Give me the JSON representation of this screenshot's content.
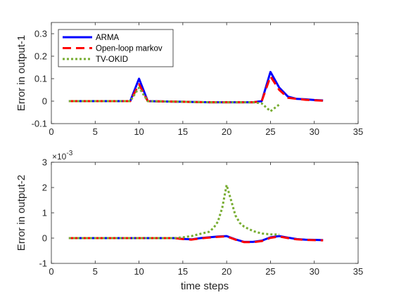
{
  "chart_data": [
    {
      "type": "line",
      "ylabel": "Error in output-1",
      "xlabel": "",
      "xlim": [
        0,
        35
      ],
      "ylim": [
        -0.1,
        0.35
      ],
      "xticks": [
        0,
        5,
        10,
        15,
        20,
        25,
        30,
        35
      ],
      "yticks": [
        -0.1,
        0,
        0.1,
        0.2,
        0.3
      ],
      "ytick_labels": [
        "-0.1",
        "0",
        "0.1",
        "0.2",
        "0.3"
      ],
      "exponent_label": "",
      "legend": {
        "position": "top-left",
        "entries": [
          "ARMA",
          "Open-loop markov",
          "TV-OKID"
        ]
      },
      "series": [
        {
          "name": "ARMA",
          "color": "#0000ff",
          "style": "solid",
          "x": [
            2,
            9,
            10,
            11,
            18,
            23,
            24,
            25,
            26,
            27,
            28,
            29,
            30,
            31
          ],
          "y": [
            0,
            0,
            0.1,
            0,
            -0.005,
            -0.005,
            0,
            0.13,
            0.06,
            0.02,
            0.01,
            0.008,
            0.005,
            0.003
          ]
        },
        {
          "name": "Open-loop markov",
          "color": "#ff0000",
          "style": "dashed",
          "x": [
            2,
            9,
            10,
            11,
            18,
            23,
            24,
            25,
            26,
            27,
            28,
            29,
            30,
            31
          ],
          "y": [
            0,
            0,
            0.075,
            0,
            -0.005,
            -0.005,
            0,
            0.11,
            0.05,
            0.015,
            0.01,
            0.006,
            0.004,
            0.002
          ]
        },
        {
          "name": "TV-OKID",
          "color": "#77ac30",
          "style": "dotted",
          "x": [
            2,
            9,
            10,
            11,
            18,
            23,
            24,
            25,
            26
          ],
          "y": [
            0,
            0,
            0.06,
            0,
            -0.005,
            -0.005,
            -0.01,
            -0.045,
            -0.015
          ]
        }
      ]
    },
    {
      "type": "line",
      "ylabel": "Error in output-2",
      "xlabel": "time steps",
      "xlim": [
        0,
        35
      ],
      "ylim": [
        -1,
        3
      ],
      "xticks": [
        0,
        5,
        10,
        15,
        20,
        25,
        30,
        35
      ],
      "yticks": [
        -1,
        0,
        1,
        2,
        3
      ],
      "ytick_labels": [
        "-1",
        "0",
        "1",
        "2",
        "3"
      ],
      "exponent_label": "×10",
      "exponent_power": "-3",
      "series": [
        {
          "name": "ARMA",
          "color": "#0000ff",
          "style": "solid",
          "x": [
            2,
            14,
            15,
            16,
            17,
            18,
            19,
            20,
            21,
            22,
            23,
            24,
            25,
            26,
            27,
            28,
            29,
            30,
            31
          ],
          "y": [
            0,
            0,
            -0.03,
            -0.05,
            0,
            0.03,
            0.06,
            0.08,
            -0.05,
            -0.15,
            -0.15,
            -0.1,
            0.03,
            0.08,
            0.02,
            -0.04,
            -0.06,
            -0.07,
            -0.08
          ]
        },
        {
          "name": "Open-loop markov",
          "color": "#ff0000",
          "style": "dashed",
          "x": [
            2,
            14,
            15,
            16,
            17,
            18,
            19,
            20,
            21,
            22,
            23,
            24,
            25,
            26,
            27,
            28,
            29,
            30,
            31
          ],
          "y": [
            0,
            0,
            -0.04,
            -0.06,
            -0.01,
            0.02,
            0.05,
            0.07,
            -0.06,
            -0.16,
            -0.16,
            -0.12,
            0.01,
            0.06,
            0.0,
            -0.05,
            -0.07,
            -0.08,
            -0.09
          ]
        },
        {
          "name": "TV-OKID",
          "color": "#77ac30",
          "style": "dotted",
          "x": [
            2,
            14,
            15,
            16,
            17,
            18,
            18.5,
            19,
            19.5,
            20,
            20.5,
            21,
            21.5,
            22,
            23,
            24,
            25,
            26
          ],
          "y": [
            0,
            0,
            0.03,
            0.08,
            0.17,
            0.25,
            0.4,
            0.65,
            1.2,
            2.1,
            1.5,
            0.9,
            0.6,
            0.45,
            0.28,
            0.18,
            0.15,
            0.14
          ]
        }
      ]
    }
  ]
}
